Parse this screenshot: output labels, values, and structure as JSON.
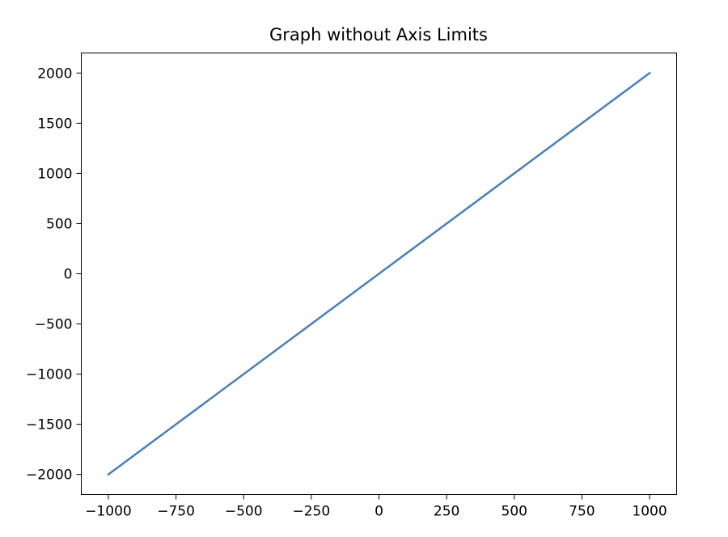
{
  "chart_data": {
    "type": "line",
    "title": "Graph without Axis Limits",
    "xlabel": "",
    "ylabel": "",
    "xlim": [
      -1100,
      1100
    ],
    "ylim": [
      -2200,
      2200
    ],
    "grid": false,
    "x_ticks": [
      -1000,
      -750,
      -500,
      -250,
      0,
      250,
      500,
      750,
      1000
    ],
    "x_tick_labels": [
      "−1000",
      "−750",
      "−500",
      "−250",
      "0",
      "250",
      "500",
      "750",
      "1000"
    ],
    "y_ticks": [
      2000,
      1500,
      1000,
      500,
      0,
      -500,
      -1000,
      -1500,
      -2000
    ],
    "y_tick_labels": [
      "2000",
      "1500",
      "1000",
      "500",
      "0",
      "−500",
      "−1000",
      "−1500",
      "−2000"
    ],
    "series": [
      {
        "color": "#4a7fb5",
        "x": [
          -1000,
          1000
        ],
        "y": [
          -2000,
          2000
        ]
      }
    ]
  }
}
